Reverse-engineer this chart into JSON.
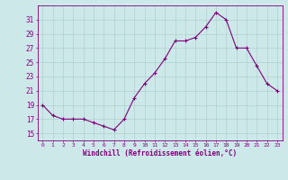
{
  "x": [
    0,
    1,
    2,
    3,
    4,
    5,
    6,
    7,
    8,
    9,
    10,
    11,
    12,
    13,
    14,
    15,
    16,
    17,
    18,
    19,
    20,
    21,
    22,
    23
  ],
  "y": [
    19,
    17.5,
    17,
    17,
    17,
    16.5,
    16,
    15.5,
    17,
    20,
    22,
    23.5,
    25.5,
    28,
    28,
    28.5,
    30,
    32,
    31,
    27,
    27,
    24.5,
    22,
    21
  ],
  "line_color": "#800080",
  "marker": "+",
  "marker_color": "#800080",
  "bg_color": "#cce8e8",
  "grid_color": "#b0d0d0",
  "xlabel": "Windchill (Refroidissement éolien,°C)",
  "yticks": [
    15,
    17,
    19,
    21,
    23,
    25,
    27,
    29,
    31
  ],
  "ylim": [
    14.0,
    33.0
  ],
  "xlim": [
    -0.5,
    23.5
  ],
  "font_color": "#800080"
}
